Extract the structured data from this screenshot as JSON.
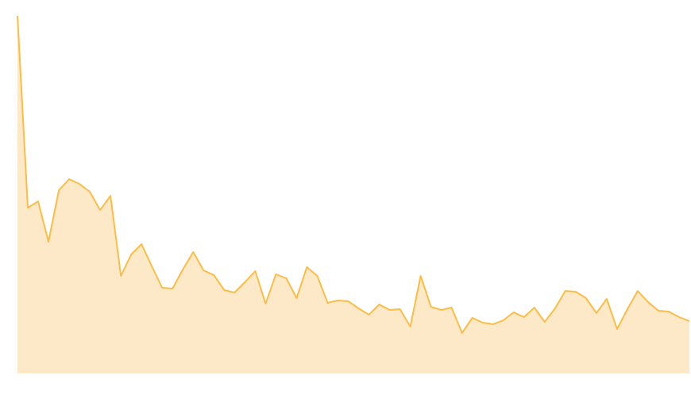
{
  "chart_data": {
    "type": "area",
    "categories": [
      null,
      null,
      null,
      null,
      null,
      null,
      null,
      null,
      null,
      null,
      null,
      null,
      null,
      null,
      null,
      null,
      null,
      null,
      null,
      null,
      null,
      null,
      null,
      null,
      null,
      null,
      null,
      null,
      null,
      null,
      null,
      null,
      null,
      null,
      null,
      null,
      null,
      null,
      null,
      null,
      null,
      null,
      null,
      null,
      null,
      null,
      null,
      null,
      null,
      null,
      null,
      null,
      null,
      null,
      null,
      null,
      null,
      null,
      null,
      null,
      null,
      null,
      null,
      null,
      null,
      null
    ],
    "values": [
      451,
      209,
      217,
      166,
      231,
      245,
      239,
      229,
      206,
      224,
      123,
      150,
      163,
      135,
      108,
      107,
      131,
      153,
      130,
      124,
      105,
      102,
      115,
      129,
      88,
      125,
      120,
      95,
      134,
      123,
      89,
      92,
      91,
      82,
      74,
      87,
      80,
      81,
      59,
      123,
      84,
      80,
      83,
      51,
      70,
      64,
      62,
      67,
      77,
      71,
      83,
      65,
      82,
      104,
      103,
      95,
      76,
      94,
      56,
      81,
      104,
      90,
      79,
      78,
      71,
      66
    ],
    "color": "#f9bd4a",
    "fill": "#fde9c8",
    "ylim": [
      0,
      451
    ]
  }
}
